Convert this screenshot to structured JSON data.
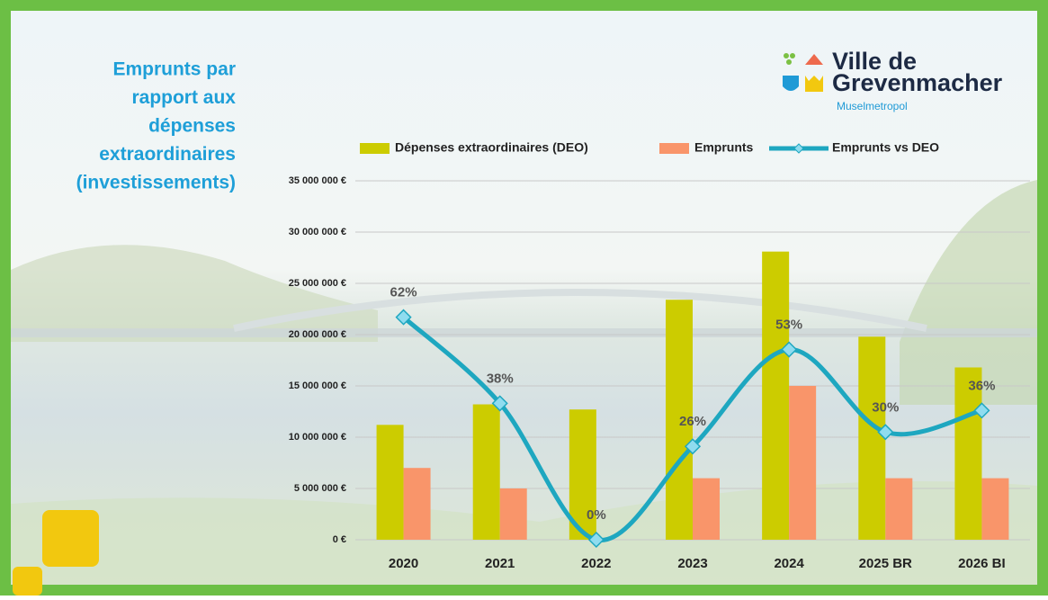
{
  "logo": {
    "line1": "Ville de",
    "line2": "Grevenmacher",
    "tagline": "Muselmetropol"
  },
  "chart_data": {
    "type": "bar",
    "title": [
      "Emprunts par",
      "rapport aux",
      "dépenses",
      "extraordinaires",
      "(investissements)"
    ],
    "categories": [
      "2020",
      "2021",
      "2022",
      "2023",
      "2024",
      "2025 BR",
      "2026 BI"
    ],
    "series": [
      {
        "name": "Dépenses extraordinaires (DEO)",
        "type": "bar",
        "color": "#cccc00",
        "values": [
          11200000,
          13200000,
          12700000,
          23400000,
          28100000,
          19800000,
          16800000
        ]
      },
      {
        "name": "Emprunts",
        "type": "bar",
        "color": "#f9956a",
        "values": [
          7000000,
          5000000,
          0,
          6000000,
          15000000,
          6000000,
          6000000
        ]
      },
      {
        "name": "Emprunts vs DEO",
        "type": "line",
        "axis": "y2",
        "color": "#1ea7c0",
        "values": [
          62,
          38,
          0,
          26,
          53,
          30,
          36
        ],
        "value_labels": [
          "62%",
          "38%",
          "0%",
          "26%",
          "53%",
          "30%",
          "36%"
        ]
      }
    ],
    "ylim": [
      0,
      35000000
    ],
    "yticks": [
      {
        "value": 0,
        "label": "0 €"
      },
      {
        "value": 5000000,
        "label": "5 000 000 €"
      },
      {
        "value": 10000000,
        "label": "10 000 000 €"
      },
      {
        "value": 15000000,
        "label": "15 000 000 €"
      },
      {
        "value": 20000000,
        "label": "20 000 000 €"
      },
      {
        "value": 25000000,
        "label": "25 000 000 €"
      },
      {
        "value": 30000000,
        "label": "30 000 000 €"
      },
      {
        "value": 35000000,
        "label": "35 000 000 €"
      }
    ],
    "y2lim": [
      0,
      100
    ],
    "grid": true,
    "legend": "top"
  }
}
